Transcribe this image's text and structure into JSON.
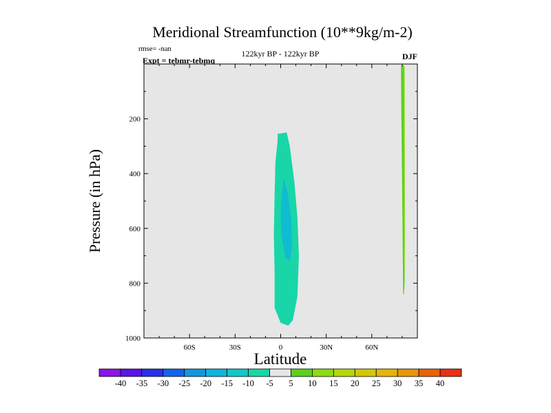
{
  "chart_data": {
    "type": "contour",
    "title": "Meridional Streamfunction (10**9kg/m-2)",
    "subtitle": "122kyr BP - 122kyr BP",
    "season": "DJF",
    "rmse_text": "rmse= -nan",
    "expt_text": "Expt = tebmr-tebmq",
    "xlabel": "Latitude",
    "ylabel": "Pressure (in hPa)",
    "xlim": [
      -90,
      90
    ],
    "ylim": [
      0,
      1000
    ],
    "y_inverted": true,
    "x_ticks": [
      {
        "value": -60,
        "label": "60S"
      },
      {
        "value": -30,
        "label": "30S"
      },
      {
        "value": 0,
        "label": "0"
      },
      {
        "value": 30,
        "label": "30N"
      },
      {
        "value": 60,
        "label": "60N"
      }
    ],
    "y_ticks": [
      {
        "value": 200,
        "label": "200"
      },
      {
        "value": 400,
        "label": "400"
      },
      {
        "value": 600,
        "label": "600"
      },
      {
        "value": 800,
        "label": "800"
      },
      {
        "value": 1000,
        "label": "1000"
      }
    ],
    "background_color": "#e6e6e6",
    "filled_regions": [
      {
        "name": "outer-tropical-cell",
        "level": -10,
        "color": "#19d6a8",
        "points": [
          [
            -2,
            255
          ],
          [
            4,
            250
          ],
          [
            6,
            300
          ],
          [
            9,
            430
          ],
          [
            11,
            560
          ],
          [
            12,
            700
          ],
          [
            11,
            850
          ],
          [
            8,
            935
          ],
          [
            5,
            955
          ],
          [
            0,
            945
          ],
          [
            -4,
            890
          ],
          [
            -4,
            760
          ],
          [
            -4.5,
            620
          ],
          [
            -4,
            480
          ],
          [
            -3.5,
            360
          ],
          [
            -2,
            280
          ]
        ]
      },
      {
        "name": "inner-tropical-core",
        "level": -15,
        "color": "#10bcd0",
        "points": [
          [
            2,
            415
          ],
          [
            5,
            475
          ],
          [
            7,
            575
          ],
          [
            7.5,
            665
          ],
          [
            6,
            720
          ],
          [
            3,
            705
          ],
          [
            0.5,
            625
          ],
          [
            0,
            530
          ],
          [
            1,
            460
          ]
        ]
      },
      {
        "name": "northern-polar-strip",
        "level": 5,
        "color": "#5ad21e",
        "points": [
          [
            79.2,
            5
          ],
          [
            81.1,
            5
          ],
          [
            81.4,
            200
          ],
          [
            81.5,
            500
          ],
          [
            81.6,
            800
          ],
          [
            81.1,
            840
          ],
          [
            80.6,
            840
          ],
          [
            80.4,
            700
          ],
          [
            79.9,
            400
          ],
          [
            79.4,
            150
          ]
        ]
      },
      {
        "name": "northern-polar-strip-edge",
        "level": 10,
        "color": "#8cdc14",
        "points": [
          [
            81.1,
            5
          ],
          [
            81.6,
            10
          ],
          [
            81.7,
            300
          ],
          [
            81.8,
            650
          ],
          [
            81.6,
            800
          ],
          [
            81.3,
            650
          ],
          [
            81.2,
            300
          ]
        ]
      }
    ],
    "colorbar": {
      "levels": [
        -40,
        -35,
        -30,
        -25,
        -20,
        -15,
        -10,
        -5,
        5,
        10,
        15,
        20,
        25,
        30,
        35,
        40
      ],
      "labels": [
        "-40",
        "-35",
        "-30",
        "-25",
        "-20",
        "-15",
        "-10",
        "-5",
        "5",
        "10",
        "15",
        "20",
        "25",
        "30",
        "35",
        "40"
      ],
      "colors": [
        "#8c14e6",
        "#5a14e6",
        "#2832e6",
        "#1464e6",
        "#1496dc",
        "#10b4dc",
        "#10c8c8",
        "#19d6a8",
        "#e6e6e6",
        "#5ad21e",
        "#8cdc14",
        "#b4d70f",
        "#d2c80a",
        "#e6b40a",
        "#e6960a",
        "#e6640a",
        "#e63214"
      ]
    }
  }
}
